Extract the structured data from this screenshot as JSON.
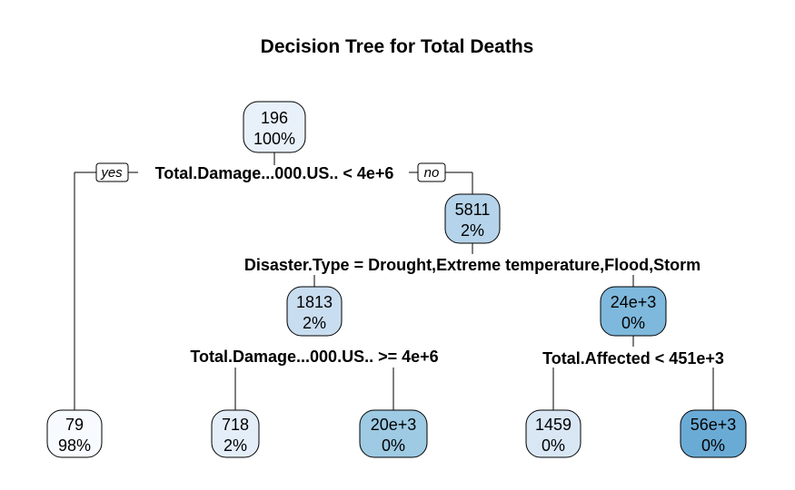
{
  "title": "Decision Tree for Total Deaths",
  "branch_labels": {
    "yes": "yes",
    "no": "no"
  },
  "colors": {
    "edge": "#000000",
    "node_border": "#000000",
    "fill_scale": [
      "#f2f7fd",
      "#e6eff9",
      "#d4e4f4",
      "#b5d3ea",
      "#8cbfe0",
      "#6aabd6"
    ]
  },
  "nodes": [
    {
      "id": "root",
      "value": "196",
      "percent": "100%",
      "fill": "#e8f0fa"
    },
    {
      "id": "no-branch",
      "value": "5811",
      "percent": "2%",
      "fill": "#b5d3ea"
    },
    {
      "id": "type-yes",
      "value": "1813",
      "percent": "2%",
      "fill": "#c9ddf0"
    },
    {
      "id": "type-no",
      "value": "24e+3",
      "percent": "0%",
      "fill": "#7eb8dc"
    },
    {
      "id": "leaf-1",
      "value": "79",
      "percent": "98%",
      "fill": "#f7fafe"
    },
    {
      "id": "leaf-2",
      "value": "718",
      "percent": "2%",
      "fill": "#e4eef9"
    },
    {
      "id": "leaf-3",
      "value": "20e+3",
      "percent": "0%",
      "fill": "#9ecae3"
    },
    {
      "id": "leaf-4",
      "value": "1459",
      "percent": "0%",
      "fill": "#d9e7f5"
    },
    {
      "id": "leaf-5",
      "value": "56e+3",
      "percent": "0%",
      "fill": "#6aabd6"
    }
  ],
  "splits": [
    {
      "id": "root-split",
      "text": "Total.Damage...000.US.. < 4e+6"
    },
    {
      "id": "type-split",
      "text": "Disaster.Type = Drought,Extreme temperature,Flood,Storm"
    },
    {
      "id": "damage-split-2",
      "text": "Total.Damage...000.US.. >= 4e+6"
    },
    {
      "id": "affected-split",
      "text": "Total.Affected < 451e+3"
    }
  ]
}
